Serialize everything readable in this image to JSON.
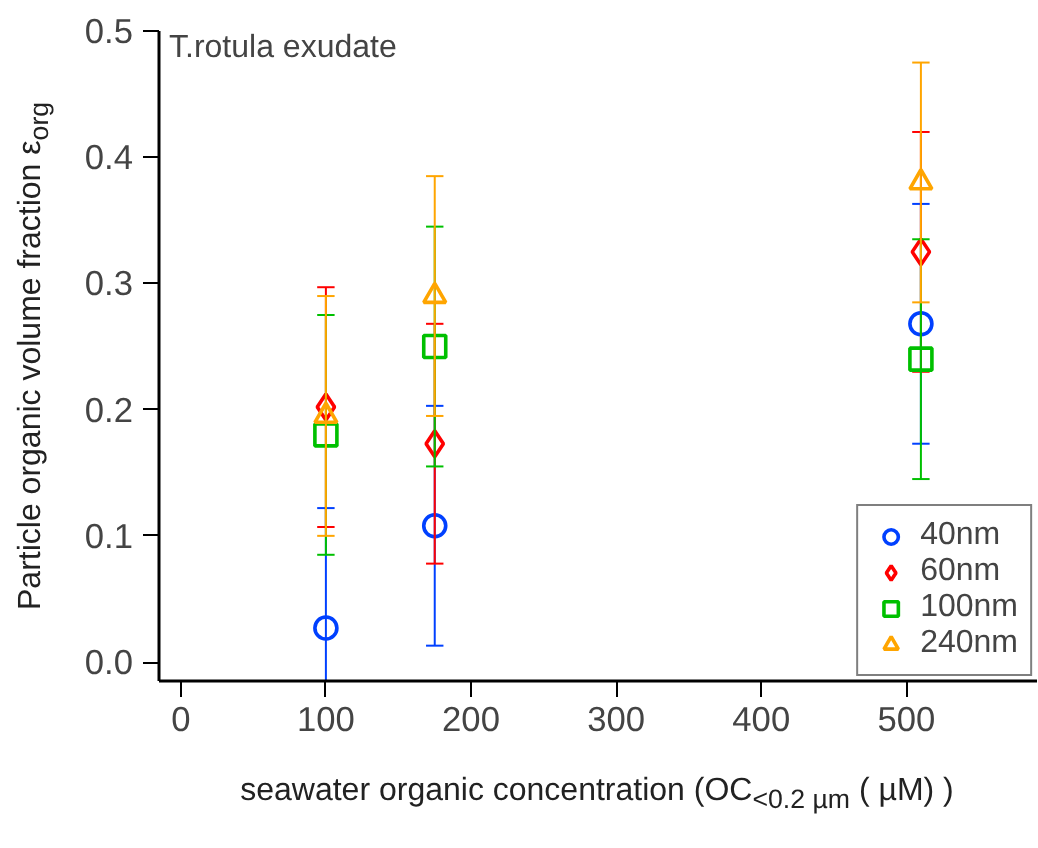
{
  "chart_data": {
    "type": "scatter",
    "xlabel": "seawater organic concentration (OC$_{<0.2 µm}$ ( µM) )",
    "ylabel": "Particle organic volume fraction ε$_{org}$",
    "annotations": [
      "T.rotula exudate"
    ],
    "x": [
      100,
      175,
      510
    ],
    "series": [
      {
        "name": "40nm",
        "color": "#0040ff",
        "marker": "circle",
        "values": [
          0.027,
          0.108,
          0.268
        ],
        "errors": [
          0.095,
          0.095,
          0.095
        ]
      },
      {
        "name": "60nm",
        "color": "#ff0000",
        "marker": "diamond",
        "values": [
          0.202,
          0.173,
          0.325
        ],
        "errors": [
          0.095,
          0.095,
          0.095
        ]
      },
      {
        "name": "100nm",
        "color": "#00c000",
        "marker": "square",
        "values": [
          0.18,
          0.25,
          0.24
        ],
        "errors": [
          0.095,
          0.095,
          0.095
        ]
      },
      {
        "name": "240nm",
        "color": "#ffa500",
        "marker": "triangle",
        "values": [
          0.195,
          0.29,
          0.38
        ],
        "errors": [
          0.095,
          0.095,
          0.095
        ]
      }
    ],
    "xlim": [
      -15,
      590
    ],
    "ylim": [
      -0.015,
      0.5
    ],
    "xticks": [
      0,
      100,
      200,
      300,
      400,
      500
    ],
    "yticks": [
      {
        "value": 0,
        "label": "0.0"
      },
      0.1,
      0.2,
      0.3,
      0.4,
      0.5
    ],
    "grid": false,
    "legend": "bottom right"
  }
}
